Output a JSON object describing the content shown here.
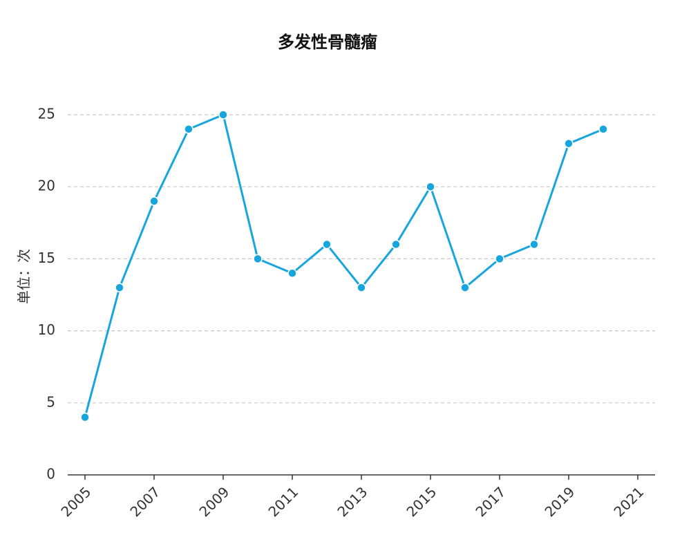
{
  "chart_data": {
    "type": "line",
    "title": "多发性骨髓瘤",
    "y_label": "单位：次",
    "x": [
      2005,
      2006,
      2007,
      2008,
      2009,
      2010,
      2011,
      2012,
      2013,
      2014,
      2015,
      2016,
      2017,
      2018,
      2019,
      2020
    ],
    "series": [
      {
        "name": "多发性骨髓瘤",
        "color": "#16a6dd",
        "values": [
          4,
          13,
          19,
          24,
          25,
          15,
          14,
          16,
          13,
          16,
          20,
          13,
          15,
          16,
          23,
          24
        ]
      }
    ],
    "xlim": [
      2004.5,
      2021.5
    ],
    "xticks": [
      2005,
      2007,
      2009,
      2011,
      2013,
      2015,
      2017,
      2019,
      2021
    ],
    "ylim": [
      0,
      25
    ],
    "yticks": [
      0,
      5,
      10,
      15,
      20,
      25
    ],
    "grid": true
  }
}
